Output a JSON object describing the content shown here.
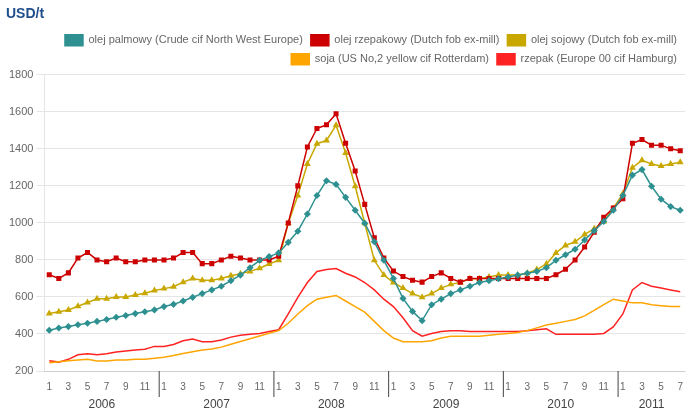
{
  "chart_data": {
    "type": "line",
    "title": "USD/t",
    "categories": [
      "1",
      null,
      "3",
      null,
      "5",
      null,
      "7",
      null,
      "9",
      null,
      "11",
      null,
      "1",
      null,
      "3",
      null,
      "5",
      null,
      "7",
      null,
      "9",
      null,
      "11",
      null,
      "1",
      null,
      "3",
      null,
      "5",
      null,
      "7",
      null,
      "9",
      null,
      "11",
      null,
      "1",
      null,
      "3",
      null,
      "5",
      null,
      "7",
      null,
      "9",
      null,
      "11",
      null,
      "1",
      null,
      "3",
      null,
      "5",
      null,
      "7",
      null,
      "9",
      null,
      "11",
      null,
      "1",
      null,
      "3",
      null,
      "5",
      null,
      "7"
    ],
    "x_groups": [
      {
        "label": "2006",
        "count": 12
      },
      {
        "label": "2007",
        "count": 12
      },
      {
        "label": "2008",
        "count": 12
      },
      {
        "label": "2009",
        "count": 12
      },
      {
        "label": "2010",
        "count": 12
      },
      {
        "label": "2011",
        "count": 7
      }
    ],
    "ylim": [
      200,
      1800
    ],
    "yticks": [
      200,
      400,
      600,
      800,
      1000,
      1200,
      1400,
      1600,
      1800
    ],
    "grid": true,
    "legend": "upper right",
    "series": [
      {
        "name": "olej palmowy (Crude cif North West Europe)",
        "color": "#2E9090",
        "marker": "diamond",
        "values": [
          420,
          432,
          440,
          450,
          458,
          468,
          478,
          490,
          500,
          510,
          520,
          530,
          548,
          560,
          578,
          598,
          618,
          638,
          658,
          688,
          718,
          758,
          798,
          818,
          838,
          895,
          955,
          1048,
          1148,
          1228,
          1208,
          1138,
          1068,
          998,
          898,
          798,
          700,
          592,
          522,
          472,
          558,
          588,
          618,
          638,
          658,
          678,
          688,
          698,
          708,
          718,
          728,
          738,
          758,
          798,
          828,
          858,
          908,
          958,
          1008,
          1068,
          1148,
          1258,
          1288,
          1198,
          1128,
          1088,
          1068
        ]
      },
      {
        "name": "olej rzepakowy (Dutch fob ex-mill)",
        "color": "#CC0000",
        "marker": "square",
        "values": [
          720,
          700,
          730,
          810,
          840,
          800,
          790,
          810,
          790,
          790,
          800,
          800,
          800,
          810,
          840,
          840,
          780,
          780,
          800,
          820,
          810,
          800,
          800,
          800,
          820,
          1000,
          1200,
          1410,
          1510,
          1530,
          1590,
          1430,
          1280,
          1100,
          920,
          810,
          740,
          710,
          690,
          680,
          710,
          730,
          700,
          680,
          700,
          700,
          700,
          700,
          700,
          700,
          700,
          700,
          700,
          720,
          750,
          800,
          870,
          950,
          1030,
          1080,
          1130,
          1430,
          1450,
          1420,
          1420,
          1400,
          1390
        ]
      },
      {
        "name": "olej sojowy (Dutch fob ex-mill)",
        "color": "#C8A800",
        "marker": "triangle",
        "values": [
          510,
          520,
          530,
          550,
          570,
          590,
          590,
          600,
          600,
          610,
          620,
          635,
          645,
          655,
          680,
          700,
          690,
          690,
          700,
          715,
          725,
          738,
          755,
          778,
          798,
          998,
          1148,
          1318,
          1428,
          1445,
          1528,
          1378,
          1198,
          998,
          798,
          718,
          678,
          648,
          618,
          598,
          618,
          648,
          668,
          678,
          698,
          698,
          708,
          718,
          718,
          718,
          728,
          748,
          778,
          838,
          878,
          898,
          938,
          968,
          1008,
          1078,
          1158,
          1298,
          1338,
          1318,
          1308,
          1318,
          1328
        ]
      },
      {
        "name": "soja (US No,2 yellow cif Rotterdam)",
        "color": "#FFA500",
        "values": [
          245,
          250,
          255,
          260,
          263,
          254,
          254,
          259,
          260,
          264,
          264,
          269,
          274,
          284,
          294,
          304,
          313,
          319,
          329,
          344,
          359,
          374,
          389,
          404,
          418,
          458,
          508,
          553,
          588,
          598,
          608,
          578,
          548,
          518,
          468,
          418,
          378,
          358,
          358,
          358,
          363,
          378,
          388,
          388,
          388,
          388,
          393,
          398,
          403,
          408,
          418,
          433,
          448,
          458,
          468,
          478,
          498,
          528,
          558,
          588,
          578,
          568,
          568,
          558,
          553,
          548,
          548
        ]
      },
      {
        "name": "rzepak (Europe 00 cif Hamburg)",
        "color": "#FF2222",
        "values": [
          255,
          248,
          263,
          288,
          293,
          288,
          293,
          303,
          308,
          313,
          318,
          333,
          333,
          343,
          363,
          373,
          358,
          358,
          368,
          383,
          393,
          398,
          403,
          413,
          423,
          508,
          598,
          678,
          738,
          748,
          753,
          728,
          708,
          678,
          638,
          588,
          548,
          488,
          418,
          388,
          403,
          413,
          418,
          418,
          413,
          413,
          413,
          413,
          413,
          413,
          418,
          423,
          428,
          398,
          398,
          398,
          398,
          398,
          403,
          438,
          508,
          638,
          678,
          658,
          648,
          638,
          628
        ]
      }
    ]
  }
}
